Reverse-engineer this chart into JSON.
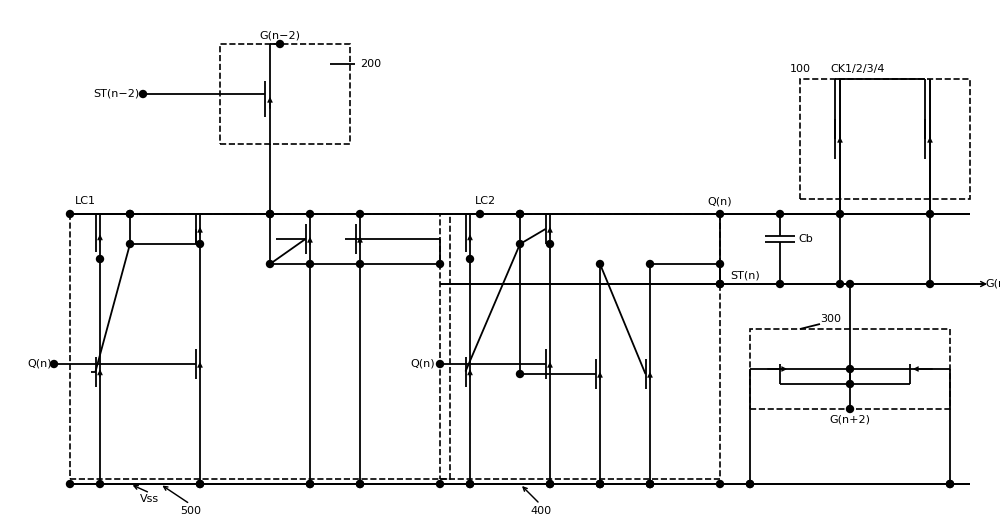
{
  "bg_color": "#ffffff",
  "line_color": "#000000",
  "lw": 1.3,
  "dot_r": 0.35,
  "labels": {
    "G_n2": "G(n−2)",
    "ST_n2": "ST(n−2)",
    "LC1": "LC1",
    "LC2": "LC2",
    "Qn_left": "Q(n)",
    "Vss": "Vss",
    "box200": "200",
    "box500": "500",
    "box400": "400",
    "box100": "100",
    "box300": "300",
    "CK": "CK1/2/3/4",
    "Qn_top": "Q(n)",
    "Cb": "Cb",
    "STn": "ST(n)",
    "Gn": "G(n)",
    "Gn2plus": "G(n+2)",
    "Qn_mid": "Q(n)"
  },
  "figsize": [
    10.0,
    5.29
  ],
  "dpi": 100
}
